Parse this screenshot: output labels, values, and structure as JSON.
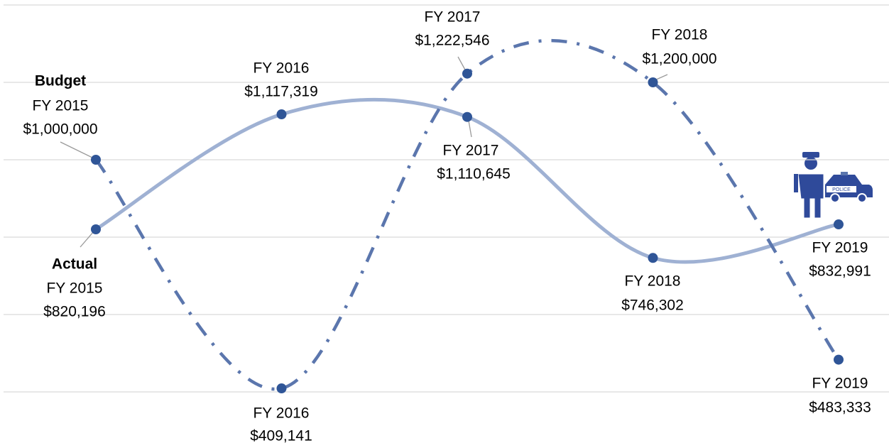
{
  "chart_data": {
    "type": "line",
    "categories": [
      "FY 2015",
      "FY 2016",
      "FY 2017",
      "FY 2018",
      "FY 2019"
    ],
    "series": [
      {
        "name": "Budget",
        "color": "#5b76ad",
        "style": "dash-dot",
        "values": [
          1000000,
          409141,
          1222546,
          1200000,
          483333
        ],
        "value_labels": [
          "$1,000,000",
          "$409,141",
          "$1,222,546",
          "$1,200,000",
          "$483,333"
        ]
      },
      {
        "name": "Actual",
        "color": "#9fb1d3",
        "style": "solid",
        "values": [
          820196,
          1117319,
          1110645,
          746302,
          832991
        ],
        "value_labels": [
          "$820,196",
          "$1,117,319",
          "$1,110,645",
          "$746,302",
          "$832,991"
        ]
      }
    ],
    "marker_color": "#2f5597",
    "ylim": [
      400000,
      1400000
    ],
    "yticks": [
      400000,
      600000,
      800000,
      1000000,
      1200000,
      1400000
    ],
    "grid": true
  }
}
